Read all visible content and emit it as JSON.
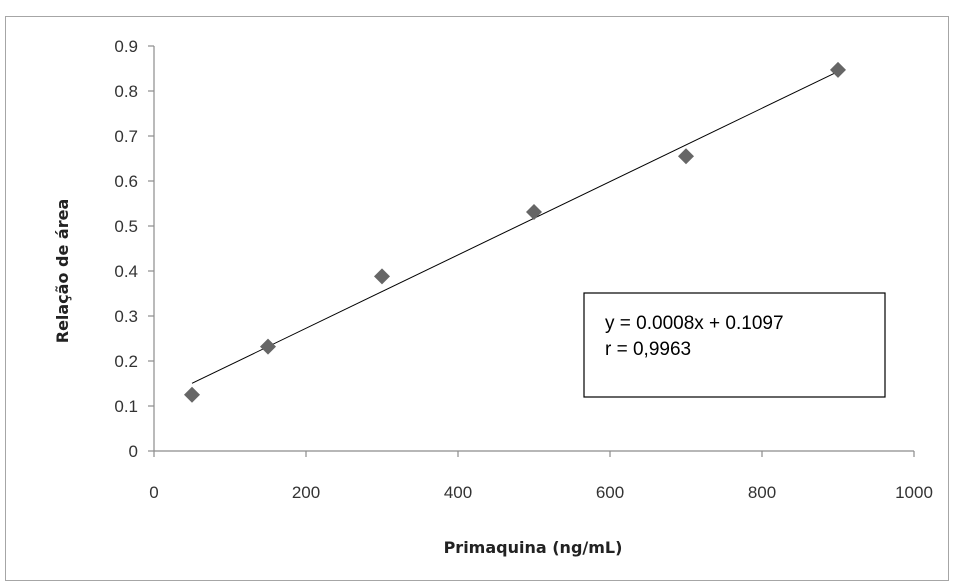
{
  "chart_data": {
    "type": "scatter",
    "xlabel": "Primaquina (ng/mL)",
    "ylabel": "Relação de área",
    "xlim": [
      0,
      1000
    ],
    "ylim": [
      0,
      0.9
    ],
    "x_ticks": [
      "0",
      "200",
      "400",
      "600",
      "800",
      "1000"
    ],
    "y_ticks": [
      "0",
      "0.1",
      "0.2",
      "0.3",
      "0.4",
      "0.5",
      "0.6",
      "0.7",
      "0.8",
      "0.9"
    ],
    "grid": false,
    "series": [
      {
        "x": [
          50,
          150,
          300,
          500,
          700,
          900
        ],
        "y": [
          0.125,
          0.232,
          0.388,
          0.531,
          0.655,
          0.847
        ],
        "color": "#666666",
        "marker": "diamond"
      }
    ],
    "trendline": {
      "type": "linear",
      "x_range": [
        50,
        900
      ],
      "slope": 0.000815,
      "intercept": 0.1097,
      "color": "#000000"
    },
    "annotation": {
      "lines": [
        "y = 0.0008x + 0.1097",
        "r = 0,9963"
      ]
    }
  }
}
